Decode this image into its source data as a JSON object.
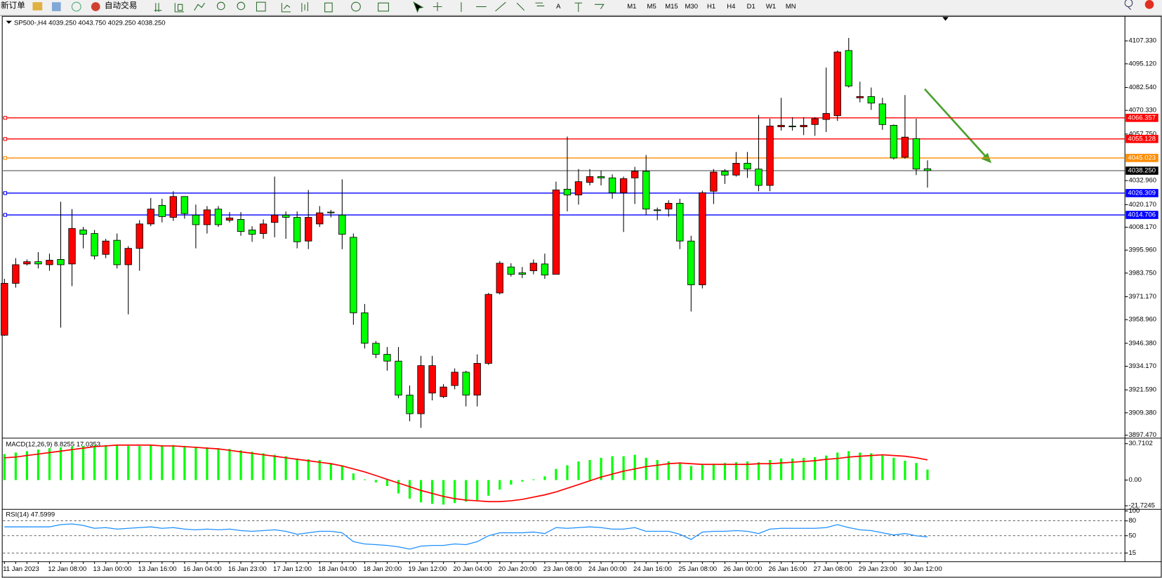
{
  "toolbar": {
    "new_order": "新订单",
    "auto_trading": "自动交易",
    "text_tool": "A",
    "timeframes": [
      "M1",
      "M5",
      "M15",
      "M30",
      "H1",
      "H4",
      "D1",
      "W1",
      "MN"
    ]
  },
  "chart_data": [
    {
      "type": "candlestick",
      "title": "SP500-,H4 4039.250 4043.750 4029.250 4038.250",
      "categories": [
        "11 Jan 2023",
        null,
        null,
        null,
        "12 Jan 08:00",
        null,
        null,
        null,
        "13 Jan 00:00",
        null,
        null,
        null,
        "13 Jan 16:00",
        null,
        null,
        null,
        "16 Jan 04:00",
        null,
        null,
        null,
        "16 Jan 23:00",
        null,
        null,
        null,
        "17 Jan 12:00",
        null,
        null,
        null,
        "18 Jan 04:00",
        null,
        null,
        null,
        "18 Jan 20:00",
        null,
        null,
        null,
        "19 Jan 12:00",
        null,
        null,
        null,
        "20 Jan 04:00",
        null,
        null,
        null,
        "20 Jan 20:00",
        null,
        null,
        null,
        "23 Jan 08:00",
        null,
        null,
        null,
        "24 Jan 00:00",
        null,
        null,
        null,
        "24 Jan 16:00",
        null,
        null,
        null,
        "25 Jan 08:00",
        null,
        null,
        null,
        "26 Jan 00:00",
        null,
        null,
        null,
        "26 Jan 16:00",
        null,
        null,
        null,
        "27 Jan 08:00",
        null,
        null,
        null,
        "29 Jan 23:00",
        null,
        null,
        null,
        "30 Jan 12:00",
        null,
        null
      ],
      "open": [
        3950.7,
        3978.3,
        3988.6,
        3989.8,
        3988.2,
        3991.0,
        3988.6,
        4006.7,
        4004.8,
        3993.7,
        4001.2,
        3988.2,
        3996.9,
        4009.9,
        4019.8,
        4013.4,
        4024.5,
        4014.6,
        4009.5,
        4017.8,
        4011.9,
        4012.3,
        4006.7,
        4004.8,
        4010.7,
        4014.6,
        4013.4,
        4000.8,
        4009.9,
        4016.2,
        4014.6,
        4002.8,
        3962.6,
        3946.4,
        3940.5,
        3936.9,
        3918.8,
        3908.9,
        3919.9,
        3918.0,
        3923.9,
        3931.0,
        3918.8,
        3935.7,
        3973.2,
        3987.0,
        3983.9,
        3985.0,
        3988.6,
        3983.1,
        4028.4,
        4025.3,
        4032.0,
        4035.1,
        4034.4,
        4026.5,
        4034.4,
        4037.9,
        4017.4,
        4017.8,
        4020.9,
        4000.8,
        3977.5,
        4027.3,
        4037.9,
        4035.9,
        4042.2,
        4039.1,
        4030.4,
        4061.6,
        4062.0,
        4061.6,
        4062.8,
        4065.5,
        4067.5,
        4102.2,
        4077.0,
        4077.7,
        4073.8,
        4062.4,
        4045.4,
        4055.3,
        4039.25
      ],
      "high": [
        3980.7,
        3991.7,
        3991.0,
        3994.9,
        3994.1,
        4021.7,
        4017.8,
        4008.3,
        4006.7,
        4002.0,
        4004.8,
        3998.1,
        4011.9,
        4023.7,
        4023.3,
        4027.3,
        4024.5,
        4020.2,
        4019.4,
        4019.4,
        4016.2,
        4016.2,
        4008.7,
        4012.3,
        4035.1,
        4016.6,
        4016.6,
        4028.0,
        4019.4,
        4017.4,
        4033.6,
        4004.8,
        3967.3,
        3947.6,
        3944.4,
        3944.4,
        3923.9,
        3939.7,
        3939.7,
        3924.7,
        3933.0,
        3931.8,
        3940.5,
        3973.2,
        3990.2,
        3989.0,
        3987.0,
        3991.0,
        3994.1,
        4032.4,
        4056.4,
        4039.1,
        4039.1,
        4038.3,
        4036.3,
        4035.1,
        4040.3,
        4046.6,
        4018.6,
        4022.5,
        4023.3,
        4003.6,
        4027.6,
        4039.1,
        4039.1,
        4048.2,
        4048.2,
        4067.9,
        4065.9,
        4077.0,
        4066.7,
        4066.7,
        4066.7,
        4093.1,
        4102.2,
        4108.9,
        4085.6,
        4082.5,
        4077.0,
        4062.8,
        4078.5,
        4065.9,
        4043.75
      ],
      "low": [
        3950.3,
        3976.0,
        3987.8,
        3986.2,
        3985.0,
        3954.7,
        3976.8,
        3996.9,
        3991.0,
        3991.7,
        3986.2,
        3961.8,
        3985.0,
        4008.7,
        4010.7,
        4011.5,
        4012.7,
        3996.9,
        4004.8,
        4008.3,
        4010.7,
        4003.6,
        4000.4,
        4002.0,
        4002.8,
        4002.0,
        3996.9,
        3996.5,
        4008.3,
        4013.4,
        3996.5,
        3956.2,
        3943.6,
        3938.5,
        3931.8,
        3917.2,
        3904.9,
        3901.4,
        3916.0,
        3917.2,
        3921.9,
        3912.8,
        3912.8,
        3934.9,
        3972.4,
        3981.9,
        3981.1,
        3983.1,
        3980.7,
        3983.1,
        4016.6,
        4020.2,
        4030.4,
        4030.4,
        4023.3,
        4005.6,
        4020.5,
        4014.6,
        4011.9,
        4013.8,
        3996.5,
        3963.3,
        3975.6,
        4020.5,
        4031.2,
        4035.1,
        4034.4,
        4027.3,
        4027.3,
        4059.6,
        4059.6,
        4057.2,
        4056.8,
        4058.8,
        4064.7,
        4082.5,
        4074.6,
        4070.6,
        4060.0,
        4044.2,
        4044.6,
        4035.9,
        4029.25
      ],
      "close": [
        3978.3,
        3988.2,
        3989.8,
        3988.6,
        3990.6,
        3988.2,
        4007.5,
        4004.4,
        3992.9,
        4000.8,
        3988.2,
        3996.9,
        4009.9,
        4017.8,
        4013.8,
        4024.5,
        4015.4,
        4009.5,
        4017.4,
        4009.5,
        4013.1,
        4005.9,
        4004.4,
        4009.9,
        4014.6,
        4013.4,
        4000.4,
        4013.4,
        4015.8,
        4015.8,
        4004.4,
        3962.6,
        3946.4,
        3940.5,
        3936.9,
        3918.8,
        3908.9,
        3934.5,
        3934.5,
        3923.1,
        3931.0,
        3918.8,
        3935.7,
        3972.4,
        3989.0,
        3983.1,
        3983.1,
        3989.0,
        3982.7,
        4028.0,
        4025.3,
        4032.4,
        4035.1,
        4034.4,
        4026.5,
        4034.0,
        4037.9,
        4017.8,
        4017.0,
        4020.9,
        4000.8,
        3977.5,
        4026.5,
        4037.5,
        4035.9,
        4042.2,
        4039.1,
        4030.4,
        4062.0,
        4062.4,
        4061.6,
        4062.4,
        4065.9,
        4068.7,
        4101.4,
        4083.3,
        4077.7,
        4074.2,
        4062.8,
        4045.0,
        4056.1,
        4039.1,
        4038.25
      ],
      "up_color": "#ff0000",
      "down_color": "#00ff00",
      "ylim": [
        3896.5,
        4119.6
      ],
      "yticks": [
        {
          "value": 4107.33,
          "label": "4107.330"
        },
        {
          "value": 4095.12,
          "label": "4095.120"
        },
        {
          "value": 4082.54,
          "label": "4082.540"
        },
        {
          "value": 4070.33,
          "label": "4070.330"
        },
        {
          "value": 4057.75,
          "label": "4057.750"
        },
        {
          "value": 4032.96,
          "label": "4032.960"
        },
        {
          "value": 4020.17,
          "label": "4020.170"
        },
        {
          "value": 4008.17,
          "label": "4008.170"
        },
        {
          "value": 3995.96,
          "label": "3995.960"
        },
        {
          "value": 3983.75,
          "label": "3983.750"
        },
        {
          "value": 3971.17,
          "label": "3971.170"
        },
        {
          "value": 3958.96,
          "label": "3958.960"
        },
        {
          "value": 3946.38,
          "label": "3946.380"
        },
        {
          "value": 3934.17,
          "label": "3934.170"
        },
        {
          "value": 3921.59,
          "label": "3921.590"
        },
        {
          "value": 3909.38,
          "label": "3909.380"
        },
        {
          "value": 3897.47,
          "label": "3897.470"
        }
      ],
      "hlines": [
        {
          "value": 4066.357,
          "label": "4066.357",
          "color": "#ff0000"
        },
        {
          "value": 4055.128,
          "label": "4055.128",
          "color": "#ff0000"
        },
        {
          "value": 4045.023,
          "label": "4045.023",
          "color": "#ff8c00"
        },
        {
          "value": 4026.309,
          "label": "4026.309",
          "color": "#0000ff"
        },
        {
          "value": 4014.706,
          "label": "4014.706",
          "color": "#0000ff"
        }
      ],
      "last_price": {
        "value": 4038.25,
        "label": "4038.250",
        "color": "#000000"
      }
    },
    {
      "type": "macd",
      "title": "MACD(12,26,9) 8.8255 17.0353",
      "values": [
        21.9,
        23.2,
        24.4,
        25.7,
        26.9,
        27.6,
        28.2,
        28.8,
        29.5,
        29.5,
        29.5,
        28.8,
        28.8,
        29.5,
        29.5,
        29.5,
        28.8,
        28.2,
        27.6,
        26.9,
        26.3,
        25.1,
        23.8,
        22.6,
        21.3,
        20.1,
        18.2,
        17.5,
        16.9,
        14.4,
        12.5,
        5.6,
        0.6,
        -1.9,
        -5.0,
        -11.3,
        -15.7,
        -18.8,
        -20.1,
        -20.7,
        -19.4,
        -18.2,
        -16.9,
        -13.2,
        -8.1,
        -3.8,
        -1.3,
        0.6,
        3.1,
        9.4,
        12.5,
        15.7,
        16.9,
        18.8,
        20.1,
        20.1,
        21.3,
        18.8,
        16.9,
        15.7,
        14.4,
        11.9,
        13.2,
        13.8,
        14.4,
        15.0,
        15.7,
        15.0,
        16.9,
        18.2,
        18.2,
        18.8,
        19.4,
        20.7,
        23.2,
        24.4,
        23.2,
        22.6,
        21.3,
        18.8,
        16.3,
        14.4,
        8.8
      ],
      "signal": [
        18.8,
        19.4,
        20.7,
        21.9,
        23.2,
        24.4,
        25.7,
        26.9,
        28.2,
        28.8,
        29.5,
        29.5,
        29.5,
        29.5,
        28.8,
        28.8,
        28.2,
        27.6,
        26.9,
        26.3,
        25.1,
        23.8,
        22.6,
        21.3,
        20.1,
        18.8,
        17.5,
        16.3,
        15.0,
        13.8,
        11.9,
        9.4,
        6.9,
        3.8,
        0.6,
        -2.5,
        -5.6,
        -8.8,
        -11.3,
        -13.8,
        -15.7,
        -16.9,
        -17.5,
        -18.2,
        -18.2,
        -17.5,
        -16.3,
        -14.4,
        -12.5,
        -10.0,
        -6.9,
        -3.8,
        -0.6,
        2.5,
        5.0,
        7.5,
        9.4,
        11.3,
        12.5,
        13.8,
        14.4,
        13.8,
        13.2,
        13.2,
        13.2,
        13.2,
        13.2,
        13.8,
        13.8,
        14.4,
        15.0,
        15.7,
        16.3,
        17.5,
        18.2,
        19.4,
        20.1,
        20.7,
        21.3,
        20.7,
        20.1,
        18.8,
        17.0
      ],
      "color": "#00ff00",
      "signal_color": "#ff0000",
      "ylim": [
        -23.8,
        33.8
      ],
      "yticks": [
        30.7102,
        {
          "value": 0,
          "label": "0.00"
        },
        -21.7245
      ]
    },
    {
      "type": "line",
      "title": "RSI(14) 47.5999",
      "values": [
        67.9,
        67.9,
        67.9,
        67.9,
        67.9,
        72.4,
        73.9,
        70.9,
        64.9,
        66.4,
        63.4,
        64.9,
        66.4,
        67.9,
        64.9,
        66.4,
        63.4,
        61.9,
        63.4,
        61.9,
        63.4,
        60.4,
        58.9,
        60.4,
        61.9,
        58.9,
        52.9,
        55.9,
        58.9,
        58.9,
        55.9,
        37.9,
        33.4,
        31.9,
        30.4,
        27.4,
        22.9,
        28.9,
        30.4,
        30.4,
        33.4,
        31.9,
        37.9,
        49.9,
        55.9,
        55.9,
        55.9,
        57.4,
        54.4,
        66.4,
        64.9,
        66.4,
        67.9,
        66.4,
        63.4,
        63.4,
        66.4,
        58.9,
        58.9,
        58.9,
        52.9,
        42.4,
        57.4,
        58.9,
        58.9,
        60.4,
        58.9,
        54.4,
        63.4,
        64.9,
        64.9,
        64.9,
        64.9,
        66.4,
        72.4,
        66.4,
        61.9,
        60.4,
        55.9,
        51.4,
        54.4,
        49.9,
        47.6
      ],
      "color": "#1e90ff",
      "ylim": [
        0,
        100
      ],
      "yticks": [
        100,
        80,
        50,
        15
      ]
    }
  ]
}
